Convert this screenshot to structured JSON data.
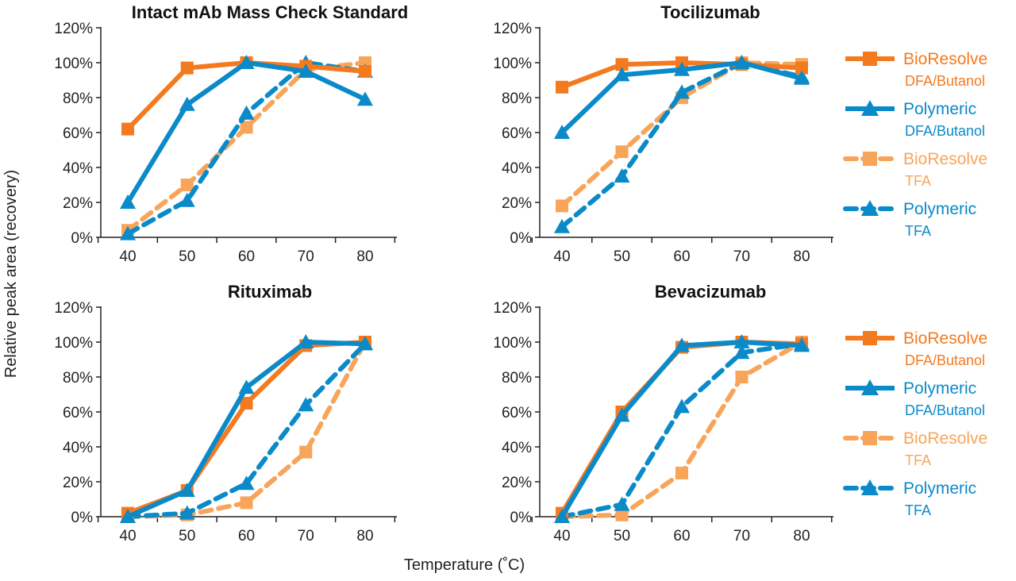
{
  "colors": {
    "bioresolve_dfa": "#f47a20",
    "polymeric_dfa": "#0a8ac9",
    "bioresolve_tfa": "#f8a55a",
    "polymeric_tfa": "#0a8ac9"
  },
  "shared": {
    "ylabel": "Relative peak area (recovery)",
    "xlabel": "Temperature (˚C)"
  },
  "legend": [
    {
      "line1": "BioResolve",
      "line2": "DFA/Butanol",
      "marker": "square",
      "dashed": false,
      "color_key": "bioresolve_dfa"
    },
    {
      "line1": "Polymeric",
      "line2": "DFA/Butanol",
      "marker": "triangle",
      "dashed": false,
      "color_key": "polymeric_dfa"
    },
    {
      "line1": "BioResolve",
      "line2": "TFA",
      "marker": "square",
      "dashed": true,
      "color_key": "bioresolve_tfa"
    },
    {
      "line1": "Polymeric",
      "line2": "TFA",
      "marker": "triangle",
      "dashed": true,
      "color_key": "polymeric_tfa"
    }
  ],
  "chart_data": [
    {
      "type": "line",
      "title": "Intact mAb Mass Check Standard",
      "x": [
        40,
        50,
        60,
        70,
        80
      ],
      "ylim": [
        0,
        120
      ],
      "yticks": [
        "0%",
        "20%",
        "40%",
        "60%",
        "80%",
        "100%",
        "120%"
      ],
      "xticks": [
        "40",
        "50",
        "60",
        "70",
        "80"
      ],
      "grid": false,
      "series": [
        {
          "name": "BioResolve DFA/Butanol",
          "values": [
            62,
            97,
            100,
            98,
            95
          ]
        },
        {
          "name": "Polymeric DFA/Butanol",
          "values": [
            20,
            76,
            100,
            95,
            79
          ]
        },
        {
          "name": "BioResolve TFA",
          "values": [
            4,
            30,
            63,
            96,
            100
          ]
        },
        {
          "name": "Polymeric TFA",
          "values": [
            2,
            21,
            71,
            100,
            95
          ]
        }
      ]
    },
    {
      "type": "line",
      "title": "Tocilizumab",
      "x": [
        40,
        50,
        60,
        70,
        80
      ],
      "ylim": [
        0,
        120
      ],
      "yticks": [
        "0%",
        "20%",
        "40%",
        "60%",
        "80%",
        "100%",
        "120%"
      ],
      "xticks": [
        "40",
        "50",
        "60",
        "70",
        "80"
      ],
      "grid": false,
      "series": [
        {
          "name": "BioResolve DFA/Butanol",
          "values": [
            86,
            99,
            100,
            99,
            97
          ]
        },
        {
          "name": "Polymeric DFA/Butanol",
          "values": [
            60,
            93,
            96,
            100,
            91
          ]
        },
        {
          "name": "BioResolve TFA",
          "values": [
            18,
            49,
            80,
            100,
            99
          ]
        },
        {
          "name": "Polymeric TFA",
          "values": [
            6,
            35,
            83,
            100,
            92
          ]
        }
      ]
    },
    {
      "type": "line",
      "title": "Rituximab",
      "x": [
        40,
        50,
        60,
        70,
        80
      ],
      "ylim": [
        0,
        120
      ],
      "yticks": [
        "0%",
        "20%",
        "40%",
        "60%",
        "80%",
        "100%",
        "120%"
      ],
      "xticks": [
        "40",
        "50",
        "60",
        "70",
        "80"
      ],
      "grid": false,
      "series": [
        {
          "name": "BioResolve DFA/Butanol",
          "values": [
            2,
            15,
            65,
            98,
            100
          ]
        },
        {
          "name": "Polymeric DFA/Butanol",
          "values": [
            0,
            15,
            74,
            100,
            99
          ]
        },
        {
          "name": "BioResolve TFA",
          "values": [
            0,
            1,
            8,
            37,
            100
          ]
        },
        {
          "name": "Polymeric TFA",
          "values": [
            0,
            2,
            19,
            64,
            99
          ]
        }
      ]
    },
    {
      "type": "line",
      "title": "Bevacizumab",
      "x": [
        40,
        50,
        60,
        70,
        80
      ],
      "ylim": [
        0,
        120
      ],
      "yticks": [
        "0%",
        "20%",
        "40%",
        "60%",
        "80%",
        "100%",
        "120%"
      ],
      "xticks": [
        "40",
        "50",
        "60",
        "70",
        "80"
      ],
      "grid": false,
      "series": [
        {
          "name": "BioResolve DFA/Butanol",
          "values": [
            2,
            60,
            97,
            100,
            99
          ]
        },
        {
          "name": "Polymeric DFA/Butanol",
          "values": [
            0,
            58,
            98,
            100,
            98
          ]
        },
        {
          "name": "BioResolve TFA",
          "values": [
            0,
            1,
            25,
            80,
            100
          ]
        },
        {
          "name": "Polymeric TFA",
          "values": [
            0,
            7,
            63,
            94,
            99
          ]
        }
      ]
    }
  ]
}
